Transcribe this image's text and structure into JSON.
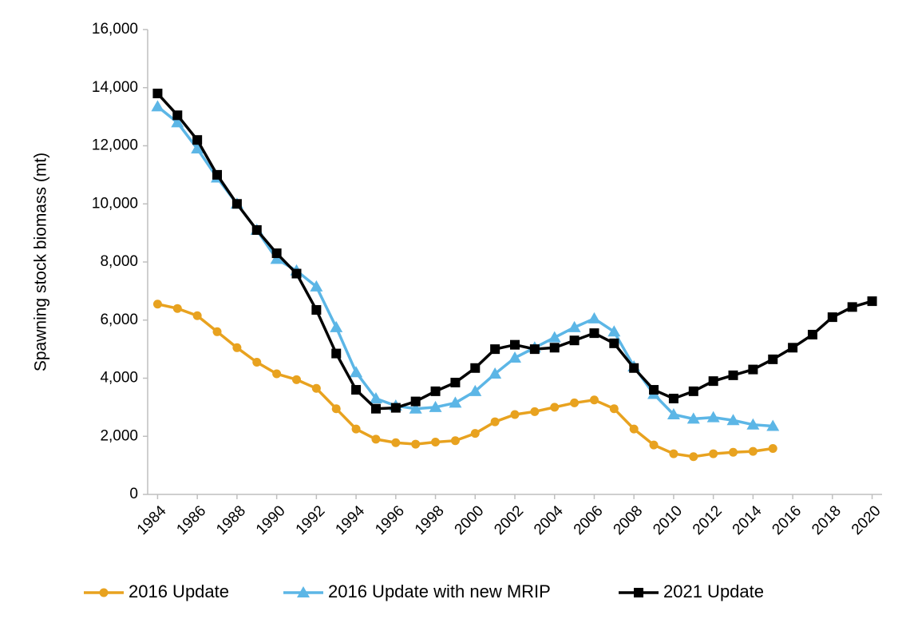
{
  "chart_data": {
    "type": "line",
    "y_label": "Spawning stock biomass (mt)",
    "x": [
      1984,
      1985,
      1986,
      1987,
      1988,
      1989,
      1990,
      1991,
      1992,
      1993,
      1994,
      1995,
      1996,
      1997,
      1998,
      1999,
      2000,
      2001,
      2002,
      2003,
      2004,
      2005,
      2006,
      2007,
      2008,
      2009,
      2010,
      2011,
      2012,
      2013,
      2014,
      2015,
      2016,
      2017,
      2018,
      2019,
      2020
    ],
    "xlim": [
      1983.5,
      2020.5
    ],
    "xticks": [
      1984,
      1986,
      1988,
      1990,
      1992,
      1994,
      1996,
      1998,
      2000,
      2002,
      2004,
      2006,
      2008,
      2010,
      2012,
      2014,
      2016,
      2018,
      2020
    ],
    "ylim": [
      0,
      16000
    ],
    "yticks": [
      0,
      {
        "value": 2000,
        "label": "2,000"
      },
      {
        "value": 4000,
        "label": "4,000"
      },
      {
        "value": 6000,
        "label": "6,000"
      },
      {
        "value": 8000,
        "label": "8,000"
      },
      {
        "value": 10000,
        "label": "10,000"
      },
      {
        "value": 12000,
        "label": "12,000"
      },
      {
        "value": 14000,
        "label": "14,000"
      },
      {
        "value": 16000,
        "label": "16,000"
      }
    ],
    "grid": false,
    "legend": "bottom",
    "series": [
      {
        "name": "2016 Update",
        "color": "#e8a21f",
        "marker": "circle",
        "values": [
          6550,
          6400,
          6150,
          5600,
          5050,
          4550,
          4150,
          3950,
          3650,
          2950,
          2250,
          1900,
          1780,
          1730,
          1800,
          1850,
          2100,
          2500,
          2750,
          2850,
          3000,
          3150,
          3250,
          2950,
          2250,
          1700,
          1400,
          1300,
          1400,
          1450,
          1480,
          1580,
          null,
          null,
          null,
          null,
          null
        ]
      },
      {
        "name": "2016 Update with new MRIP",
        "color": "#5cb6e6",
        "marker": "triangle",
        "values": [
          13350,
          12800,
          11900,
          10900,
          10000,
          9100,
          8100,
          7700,
          7150,
          5750,
          4200,
          3300,
          3050,
          2950,
          3000,
          3150,
          3550,
          4150,
          4700,
          5050,
          5400,
          5750,
          6050,
          5600,
          4400,
          3450,
          2750,
          2600,
          2650,
          2550,
          2400,
          2350,
          null,
          null,
          null,
          null,
          null
        ]
      },
      {
        "name": "2021 Update",
        "color": "#000000",
        "marker": "square",
        "values": [
          13800,
          13050,
          12200,
          11000,
          10000,
          9100,
          8300,
          7600,
          6350,
          4850,
          3600,
          2950,
          2980,
          3200,
          3550,
          3850,
          4350,
          5000,
          5150,
          5000,
          5050,
          5300,
          5550,
          5200,
          4350,
          3600,
          3300,
          3550,
          3900,
          4100,
          4300,
          4650,
          5050,
          5500,
          6100,
          6450,
          6650
        ]
      }
    ]
  }
}
